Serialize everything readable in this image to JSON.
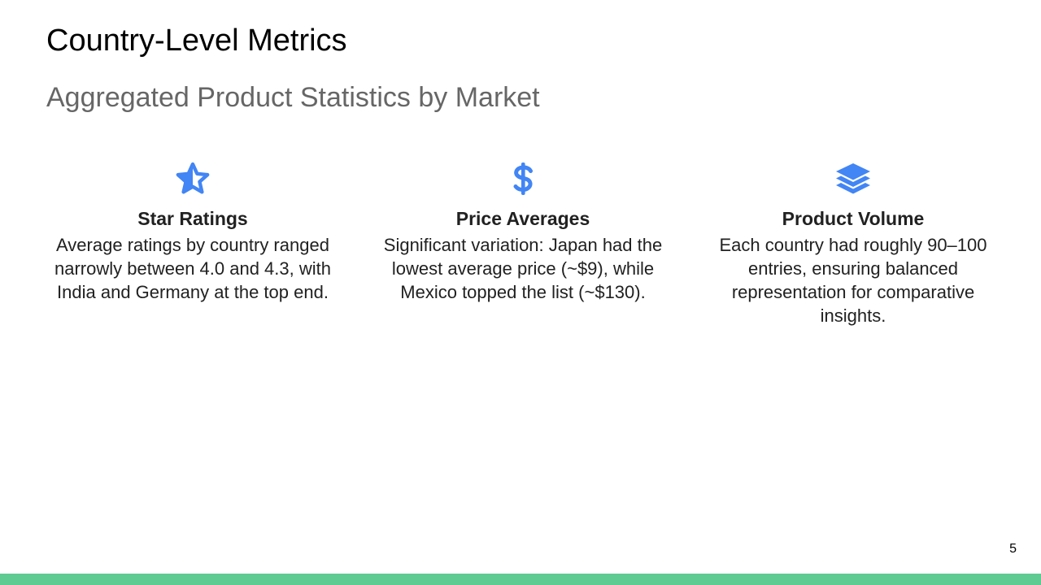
{
  "slide": {
    "title": "Country-Level Metrics",
    "subtitle": "Aggregated Product Statistics by Market",
    "page_number": "5"
  },
  "cards": [
    {
      "icon": "star-icon",
      "title": "Star Ratings",
      "text": "Average ratings by country ranged narrowly between 4.0 and 4.3, with India and Germany at the top end."
    },
    {
      "icon": "dollar-icon",
      "title": "Price Averages",
      "text": "Significant variation: Japan had the lowest average price (~$9), while Mexico topped the list (~$130)."
    },
    {
      "icon": "layers-icon",
      "title": "Product Volume",
      "text": "Each country had roughly 90–100 entries, ensuring balanced representation for comparative insights."
    }
  ],
  "colors": {
    "icon": "#4285f4",
    "footer_bar": "#5dcb92",
    "subtitle": "#666666"
  }
}
